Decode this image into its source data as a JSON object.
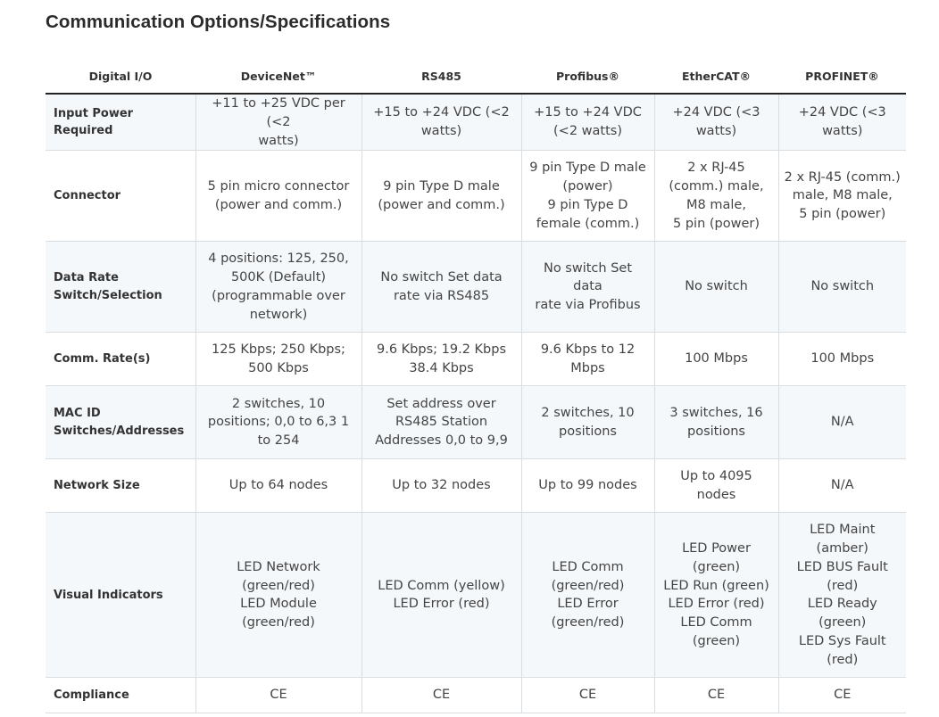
{
  "title": "Communication Options/Specifications",
  "columns": [
    "Digital I/O",
    "DeviceNet™",
    "RS485",
    "Profibus®",
    "EtherCAT®",
    "PROFINET®"
  ],
  "rows": [
    {
      "label": [
        "Input Power Required"
      ],
      "cells": [
        [
          "+11 to +25 VDC per (<2",
          "watts)"
        ],
        [
          "+15 to +24 VDC (<2",
          "watts)"
        ],
        [
          "+15 to +24 VDC",
          "(<2 watts)"
        ],
        [
          "+24 VDC (<3",
          "watts)"
        ],
        [
          "+24 VDC (<3",
          "watts)"
        ]
      ]
    },
    {
      "label": [
        "Connector"
      ],
      "cells": [
        [
          "5 pin micro connector",
          "(power and comm.)"
        ],
        [
          "9 pin Type D male",
          "(power and comm.)"
        ],
        [
          "9 pin Type D male",
          "(power)",
          "9 pin Type D",
          "female (comm.)"
        ],
        [
          "2 x RJ-45",
          "(comm.) male,",
          "M8 male,",
          "5 pin (power)"
        ],
        [
          "2 x RJ-45 (comm.)",
          "male, M8 male,",
          "5 pin (power)"
        ]
      ]
    },
    {
      "label": [
        "Data Rate",
        "Switch/Selection"
      ],
      "cells": [
        [
          "4 positions: 125, 250,",
          "500K (Default)",
          "(programmable over",
          "network)"
        ],
        [
          "No switch Set data",
          "rate via RS485"
        ],
        [
          "No switch Set data",
          "rate via Profibus"
        ],
        [
          "No switch"
        ],
        [
          "No switch"
        ]
      ]
    },
    {
      "label": [
        "Comm. Rate(s)"
      ],
      "cells": [
        [
          "125 Kbps; 250 Kbps;",
          "500 Kbps"
        ],
        [
          "9.6 Kbps; 19.2 Kbps",
          "38.4 Kbps"
        ],
        [
          "9.6 Kbps to 12",
          "Mbps"
        ],
        [
          "100 Mbps"
        ],
        [
          "100 Mbps"
        ]
      ]
    },
    {
      "label": [
        "MAC ID",
        "Switches/Addresses"
      ],
      "cells": [
        [
          "2 switches, 10",
          "positions; 0,0 to 6,3 1",
          "to 254"
        ],
        [
          "Set address over",
          "RS485 Station",
          "Addresses 0,0 to 9,9"
        ],
        [
          "2 switches, 10",
          "positions"
        ],
        [
          "3 switches, 16",
          "positions"
        ],
        [
          "N/A"
        ]
      ]
    },
    {
      "label": [
        "Network Size"
      ],
      "cells": [
        [
          "Up to 64 nodes"
        ],
        [
          "Up to 32 nodes"
        ],
        [
          "Up to 99 nodes"
        ],
        [
          "Up to 4095",
          "nodes"
        ],
        [
          "N/A"
        ]
      ]
    },
    {
      "label": [
        "Visual Indicators"
      ],
      "cells": [
        [
          "LED Network",
          "(green/red)",
          "LED Module",
          "(green/red)"
        ],
        [
          "LED Comm (yellow)",
          "LED Error (red)"
        ],
        [
          "LED Comm",
          "(green/red)",
          "LED Error",
          "(green/red)"
        ],
        [
          "LED Power",
          "(green)",
          "LED Run (green)",
          "LED Error (red)",
          "LED Comm",
          "(green)"
        ],
        [
          "LED Maint",
          "(amber)",
          "LED BUS Fault",
          "(red)",
          "LED Ready",
          "(green)",
          "LED Sys Fault",
          "(red)"
        ]
      ]
    },
    {
      "label": [
        "Compliance"
      ],
      "cells": [
        [
          "CE"
        ],
        [
          "CE"
        ],
        [
          "CE"
        ],
        [
          "CE"
        ],
        [
          "CE"
        ]
      ]
    }
  ]
}
